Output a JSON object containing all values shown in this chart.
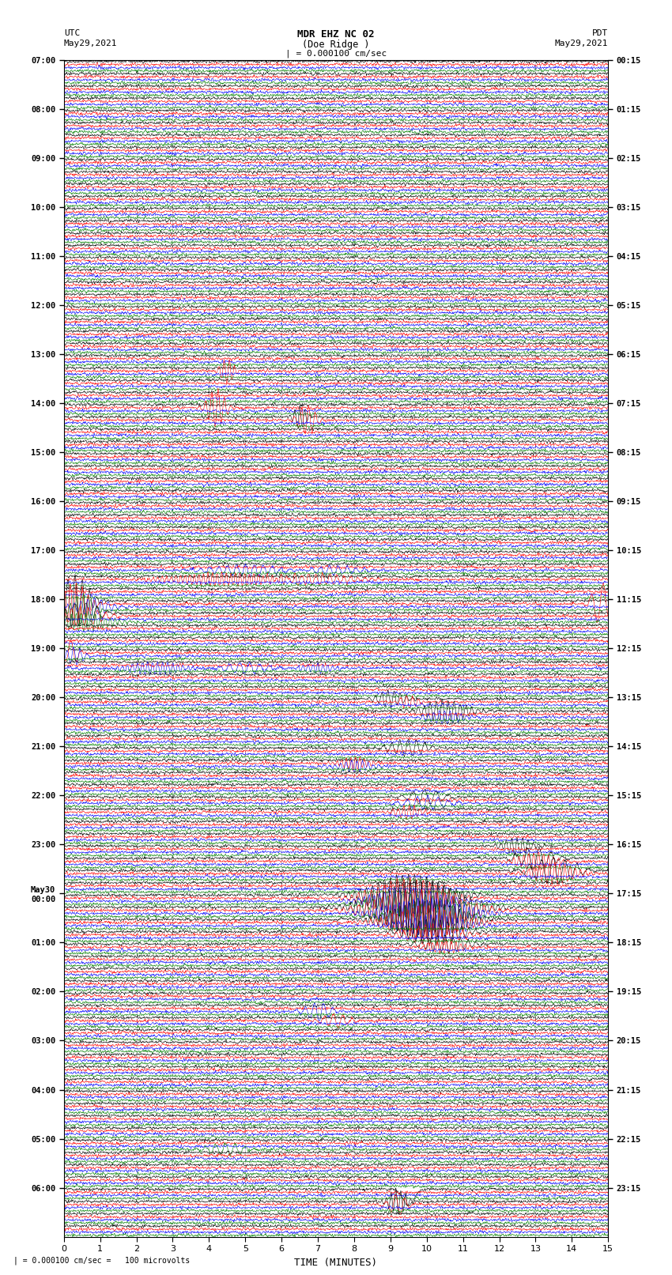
{
  "title_line1": "MDR EHZ NC 02",
  "title_line2": "(Doe Ridge )",
  "scale_text": "| = 0.000100 cm/sec",
  "footer_text": "| = 0.000100 cm/sec =   100 microvolts",
  "left_label_line1": "UTC",
  "left_label_line2": "May29,2021",
  "right_label_line1": "PDT",
  "right_label_line2": "May29,2021",
  "xlabel": "TIME (MINUTES)",
  "xmin": 0,
  "xmax": 15,
  "background_color": "#ffffff",
  "trace_colors": [
    "black",
    "red",
    "blue",
    "green"
  ],
  "grid_color_vertical": "#888888",
  "grid_color_horizontal": "#888888",
  "n_rows": 96,
  "n_traces_per_row": 4,
  "seed": 42,
  "left_times_labeled": [
    "07:00",
    "08:00",
    "09:00",
    "10:00",
    "11:00",
    "12:00",
    "13:00",
    "14:00",
    "15:00",
    "16:00",
    "17:00",
    "18:00",
    "19:00",
    "20:00",
    "21:00",
    "22:00",
    "23:00",
    "May30\n00:00",
    "01:00",
    "02:00",
    "03:00",
    "04:00",
    "05:00",
    "06:00"
  ],
  "right_times_labeled": [
    "00:15",
    "01:15",
    "02:15",
    "03:15",
    "04:15",
    "05:15",
    "06:15",
    "07:15",
    "08:15",
    "09:15",
    "10:15",
    "11:15",
    "12:15",
    "13:15",
    "14:15",
    "15:15",
    "16:15",
    "17:15",
    "18:15",
    "19:15",
    "20:15",
    "21:15",
    "22:15",
    "23:15"
  ],
  "hour_rows": [
    0,
    4,
    8,
    12,
    16,
    20,
    24,
    28,
    32,
    36,
    40,
    44,
    48,
    52,
    56,
    60,
    64,
    68,
    72,
    76,
    80,
    84,
    88,
    92
  ]
}
